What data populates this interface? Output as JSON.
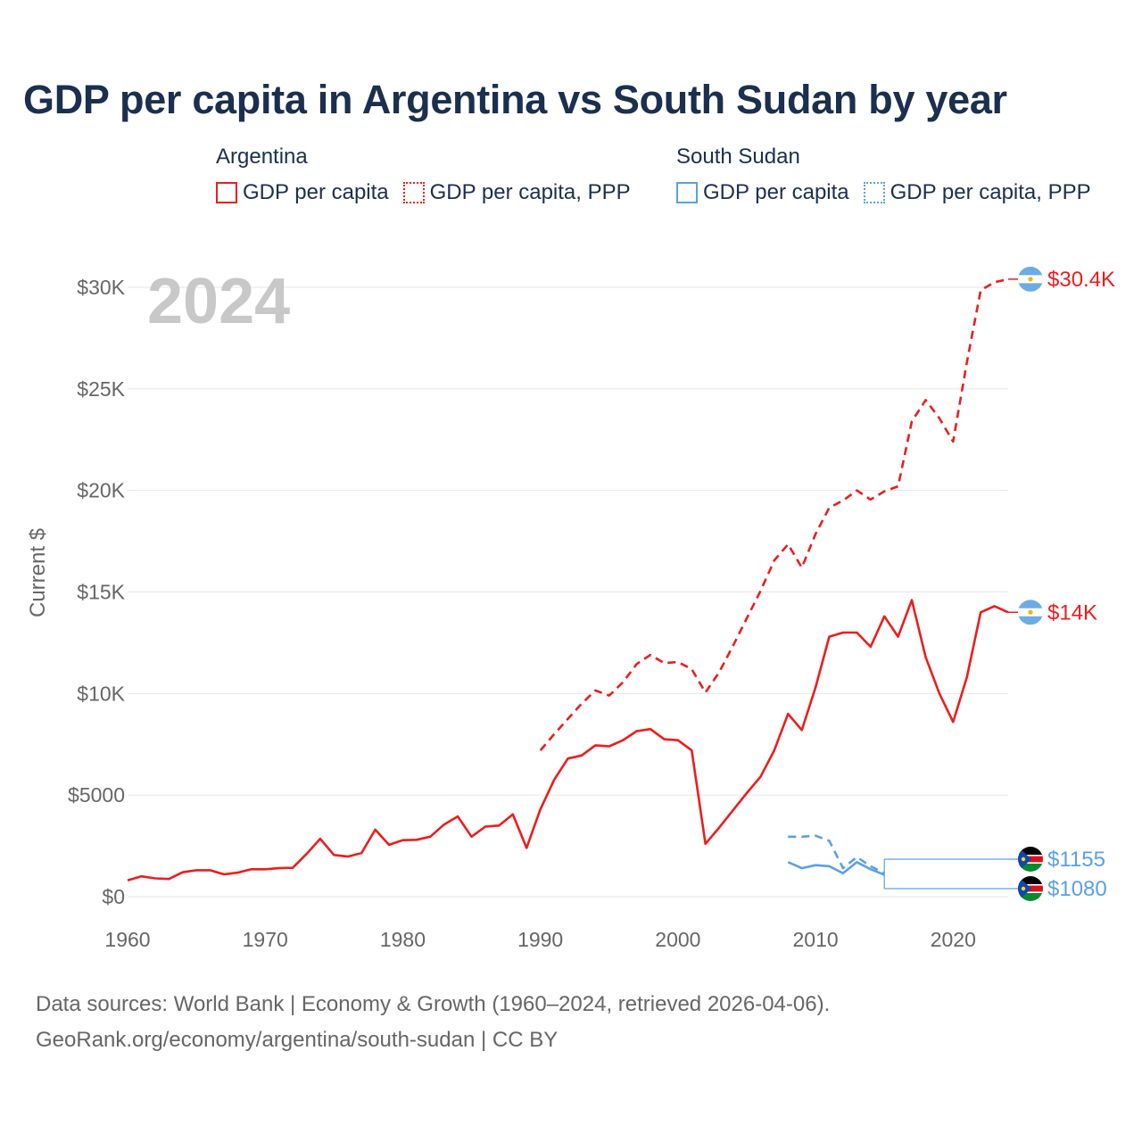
{
  "title": "GDP per capita in Argentina vs South Sudan by year",
  "legend": {
    "groups": [
      {
        "country": "Argentina",
        "items": [
          {
            "label": "GDP per capita",
            "style": "solid",
            "color": "#ee1c1c"
          },
          {
            "label": "GDP per capita, PPP",
            "style": "dotted",
            "color": "#ee1c1c"
          }
        ]
      },
      {
        "country": "South Sudan",
        "items": [
          {
            "label": "GDP per capita",
            "style": "solid",
            "color": "#5aa0e6"
          },
          {
            "label": "GDP per capita, PPP",
            "style": "dotted",
            "color": "#5aa0e6"
          }
        ]
      }
    ]
  },
  "chart_data": {
    "type": "line",
    "title": "GDP per capita in Argentina vs South Sudan by year",
    "year_label": "2024",
    "xlabel": "",
    "ylabel": "Current $",
    "xlim": [
      1960,
      2024
    ],
    "ylim": [
      0,
      30000
    ],
    "x_ticks": [
      1960,
      1970,
      1980,
      1990,
      2000,
      2010,
      2020
    ],
    "y_ticks": [
      0,
      5000,
      10000,
      15000,
      20000,
      25000,
      30000
    ],
    "y_tick_labels": [
      "$0",
      "$5000",
      "$10K",
      "$15K",
      "$20K",
      "$25K",
      "$30K"
    ],
    "grid": true,
    "series": [
      {
        "name": "Argentina GDP per capita",
        "country": "Argentina",
        "color": "#ee1c1c",
        "dash": "solid",
        "end_label": "$14K",
        "x": [
          1960,
          1961,
          1962,
          1963,
          1964,
          1965,
          1966,
          1967,
          1968,
          1969,
          1970,
          1971,
          1972,
          1973,
          1974,
          1975,
          1976,
          1977,
          1978,
          1979,
          1980,
          1981,
          1982,
          1983,
          1984,
          1985,
          1986,
          1987,
          1988,
          1989,
          1990,
          1991,
          1992,
          1993,
          1994,
          1995,
          1996,
          1997,
          1998,
          1999,
          2000,
          2001,
          2002,
          2003,
          2004,
          2005,
          2006,
          2007,
          2008,
          2009,
          2010,
          2011,
          2012,
          2013,
          2014,
          2015,
          2016,
          2017,
          2018,
          2019,
          2020,
          2021,
          2022,
          2023,
          2024
        ],
        "values": [
          800,
          1000,
          900,
          870,
          1200,
          1300,
          1300,
          1100,
          1180,
          1350,
          1350,
          1400,
          1420,
          2100,
          2850,
          2050,
          1970,
          2150,
          3300,
          2550,
          2780,
          2800,
          2950,
          3550,
          3950,
          2950,
          3450,
          3500,
          4050,
          2400,
          4300,
          5750,
          6800,
          6950,
          7450,
          7400,
          7700,
          8150,
          8250,
          7750,
          7700,
          7200,
          2600,
          3400,
          4250,
          5100,
          5900,
          7200,
          9000,
          8200,
          10300,
          12800,
          13000,
          13000,
          12300,
          13800,
          12800,
          14600,
          11800,
          10000,
          8600,
          10800,
          14000,
          14300,
          14000
        ]
      },
      {
        "name": "Argentina GDP per capita, PPP",
        "country": "Argentina",
        "color": "#ee1c1c",
        "dash": "dashed",
        "end_label": "$30.4K",
        "x": [
          1990,
          1991,
          1992,
          1993,
          1994,
          1995,
          1996,
          1997,
          1998,
          1999,
          2000,
          2001,
          2002,
          2003,
          2004,
          2005,
          2006,
          2007,
          2008,
          2009,
          2010,
          2011,
          2012,
          2013,
          2014,
          2015,
          2016,
          2017,
          2018,
          2019,
          2020,
          2021,
          2022,
          2023,
          2024
        ],
        "values": [
          7200,
          8000,
          8750,
          9500,
          10150,
          9900,
          10550,
          11450,
          11900,
          11500,
          11550,
          11200,
          10050,
          11050,
          12350,
          13700,
          15050,
          16550,
          17350,
          16200,
          17850,
          19150,
          19500,
          20000,
          19550,
          19950,
          20200,
          23400,
          24450,
          23550,
          22400,
          26300,
          29850,
          30250,
          30400
        ]
      },
      {
        "name": "South Sudan GDP per capita",
        "country": "South Sudan",
        "color": "#5aa0e6",
        "dash": "solid",
        "end_label": "$1080",
        "x": [
          2008,
          2009,
          2010,
          2011,
          2012,
          2013,
          2014,
          2015
        ],
        "values": [
          1700,
          1400,
          1550,
          1500,
          1150,
          1700,
          1350,
          1080
        ]
      },
      {
        "name": "South Sudan GDP per capita, PPP",
        "country": "South Sudan",
        "color": "#5aa0e6",
        "dash": "dashed",
        "end_label": "$1155",
        "x": [
          2008,
          2009,
          2010,
          2011,
          2012,
          2013,
          2014,
          2015
        ],
        "values": [
          2950,
          2950,
          3000,
          2750,
          1400,
          1950,
          1500,
          1155
        ]
      }
    ]
  },
  "footer": {
    "line1": "Data sources: World Bank | Economy & Growth (1960–2024, retrieved 2026-04-06).",
    "line2": "GeoRank.org/economy/argentina/south-sudan | CC BY"
  }
}
